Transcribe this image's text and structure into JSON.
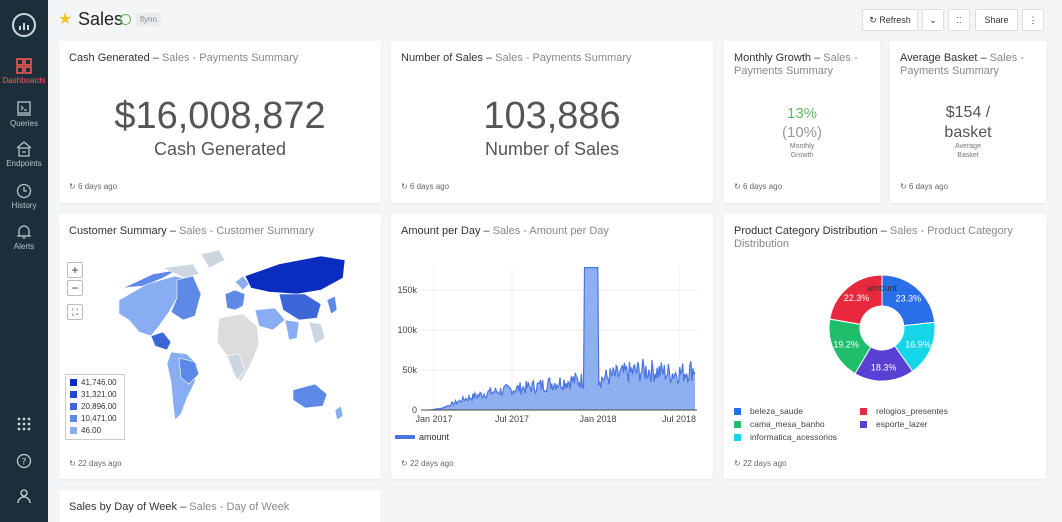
{
  "sidebar": {
    "items": [
      {
        "label": "Dashboards",
        "icon": "dashboards-icon",
        "active": true
      },
      {
        "label": "Queries",
        "icon": "queries-icon"
      },
      {
        "label": "Endpoints",
        "icon": "endpoints-icon"
      },
      {
        "label": "History",
        "icon": "history-icon"
      },
      {
        "label": "Alerts",
        "icon": "alerts-icon"
      }
    ],
    "bottom": [
      {
        "icon": "apps-grid-icon"
      },
      {
        "icon": "help-icon"
      },
      {
        "icon": "user-icon"
      }
    ]
  },
  "header": {
    "title": "Sales",
    "owner_tag": "flynn",
    "refresh_label": "Refresh",
    "share_label": "Share"
  },
  "widgets": {
    "cash": {
      "title": "Cash Generated",
      "sub": "Sales - Payments Summary",
      "value": "$16,008,872",
      "caption": "Cash Generated",
      "updated": "6 days ago"
    },
    "num_sales": {
      "title": "Number of Sales",
      "sub": "Sales - Payments Summary",
      "value": "103,886",
      "caption": "Number of Sales",
      "updated": "6 days ago"
    },
    "monthly": {
      "title": "Monthly Growth",
      "sub": "Sales - Payments Summary",
      "value": "13%",
      "target": "(10%)",
      "caption_1": "Monthly",
      "caption_2": "Growth",
      "updated": "6 days ago"
    },
    "basket": {
      "title": "Average Basket",
      "sub": "Sales - Payments Summary",
      "value_1": "$154 /",
      "value_2": "basket",
      "caption_1": "Average",
      "caption_2": "Basket",
      "updated": "6 days ago"
    },
    "customer": {
      "title": "Customer Summary",
      "sub": "Sales - Customer Summary",
      "legend": [
        "41,746.00",
        "31,321.00",
        "20,896.00",
        "10,471.00",
        "46.00"
      ],
      "legend_colors": [
        "#0a2dbf",
        "#1e47c9",
        "#3b67d8",
        "#5f89e6",
        "#88adf2"
      ],
      "zoom_in": "+",
      "zoom_out": "−",
      "updated": "22 days ago"
    },
    "amount": {
      "title": "Amount per Day",
      "sub": "Sales - Amount per Day",
      "legend_label": "amount",
      "updated": "22 days ago"
    },
    "category": {
      "title": "Product Category Distribution",
      "sub": "Sales - Product Category Distribution",
      "updated": "22 days ago"
    },
    "dow": {
      "title": "Sales by Day of Week",
      "sub": "Sales - Day of Week"
    }
  },
  "chart_data": [
    {
      "type": "area",
      "title": "Amount per Day",
      "x_ticks": [
        "Jan 2017",
        "Jul 2017",
        "Jan 2018",
        "Jul 2018"
      ],
      "y_ticks": [
        "0",
        "50k",
        "100k",
        "150k"
      ],
      "ylim": [
        0,
        180000
      ],
      "series": [
        {
          "name": "amount",
          "color": "#4a74e0"
        }
      ],
      "x": [
        "2016-10",
        "2016-12",
        "2017-01",
        "2017-02",
        "2017-03",
        "2017-04",
        "2017-05",
        "2017-06",
        "2017-07",
        "2017-08",
        "2017-09",
        "2017-10",
        "2017-11",
        "2017-11-24",
        "2017-12",
        "2018-01",
        "2018-02",
        "2018-03",
        "2018-04",
        "2018-05",
        "2018-06",
        "2018-07",
        "2018-08"
      ],
      "values": [
        0,
        2000,
        8000,
        14000,
        18000,
        22000,
        24000,
        26000,
        28000,
        30000,
        33000,
        35000,
        37000,
        178000,
        38000,
        42000,
        45000,
        48000,
        50000,
        48000,
        46000,
        47000,
        52000
      ]
    },
    {
      "type": "pie",
      "title": "amount",
      "categories": [
        "beleza_saude",
        "cama_mesa_banho",
        "informatica_acessorios",
        "relogios_presentes",
        "esporte_lazer"
      ],
      "values": [
        23.3,
        19.2,
        16.9,
        22.3,
        18.3
      ],
      "colors": [
        "#2b6fe8",
        "#1ebe6b",
        "#14d6e8",
        "#e8293d",
        "#5a3fd4"
      ]
    }
  ]
}
